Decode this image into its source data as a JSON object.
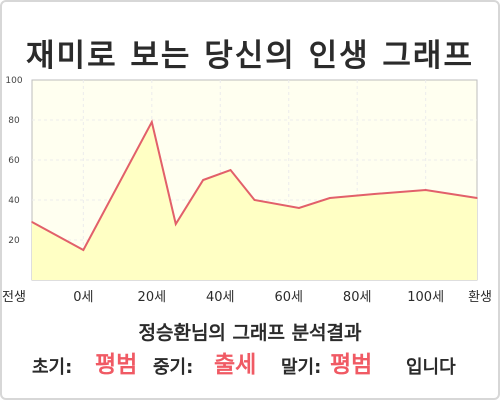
{
  "title": "재미로 보는 당신의 인생 그래프",
  "subtitle": "정승환님의 그래프 분석결과",
  "summary": {
    "early_label": "초기:",
    "early_value": "평범",
    "mid_label": "중기:",
    "mid_value": "출세",
    "late_label": "말기:",
    "late_value": "평범",
    "ending": "입니다"
  },
  "colors": {
    "line": "#e2606a",
    "fill": "#ffffc4",
    "plot_bg": "#fffff0",
    "highlight": "#f05a64"
  },
  "chart_data": {
    "type": "area",
    "title": "재미로 보는 당신의 인생 그래프",
    "xlabel": "",
    "ylabel": "",
    "ylim": [
      0,
      100
    ],
    "yticks": [
      20,
      40,
      60,
      80,
      100
    ],
    "xlim": [
      -15,
      115
    ],
    "xticks": [
      {
        "x": -15,
        "label": "전생"
      },
      {
        "x": 0,
        "label": "0세"
      },
      {
        "x": 20,
        "label": "20세"
      },
      {
        "x": 40,
        "label": "40세"
      },
      {
        "x": 60,
        "label": "60세"
      },
      {
        "x": 80,
        "label": "80세"
      },
      {
        "x": 100,
        "label": "100세"
      },
      {
        "x": 115,
        "label": "환생"
      }
    ],
    "grid": true,
    "series": [
      {
        "x": [
          -15,
          0,
          20,
          27,
          35,
          43,
          50,
          63,
          72,
          85,
          100,
          115
        ],
        "values": [
          29,
          15,
          79,
          28,
          50,
          55,
          40,
          36,
          41,
          43,
          45,
          41
        ]
      }
    ]
  }
}
